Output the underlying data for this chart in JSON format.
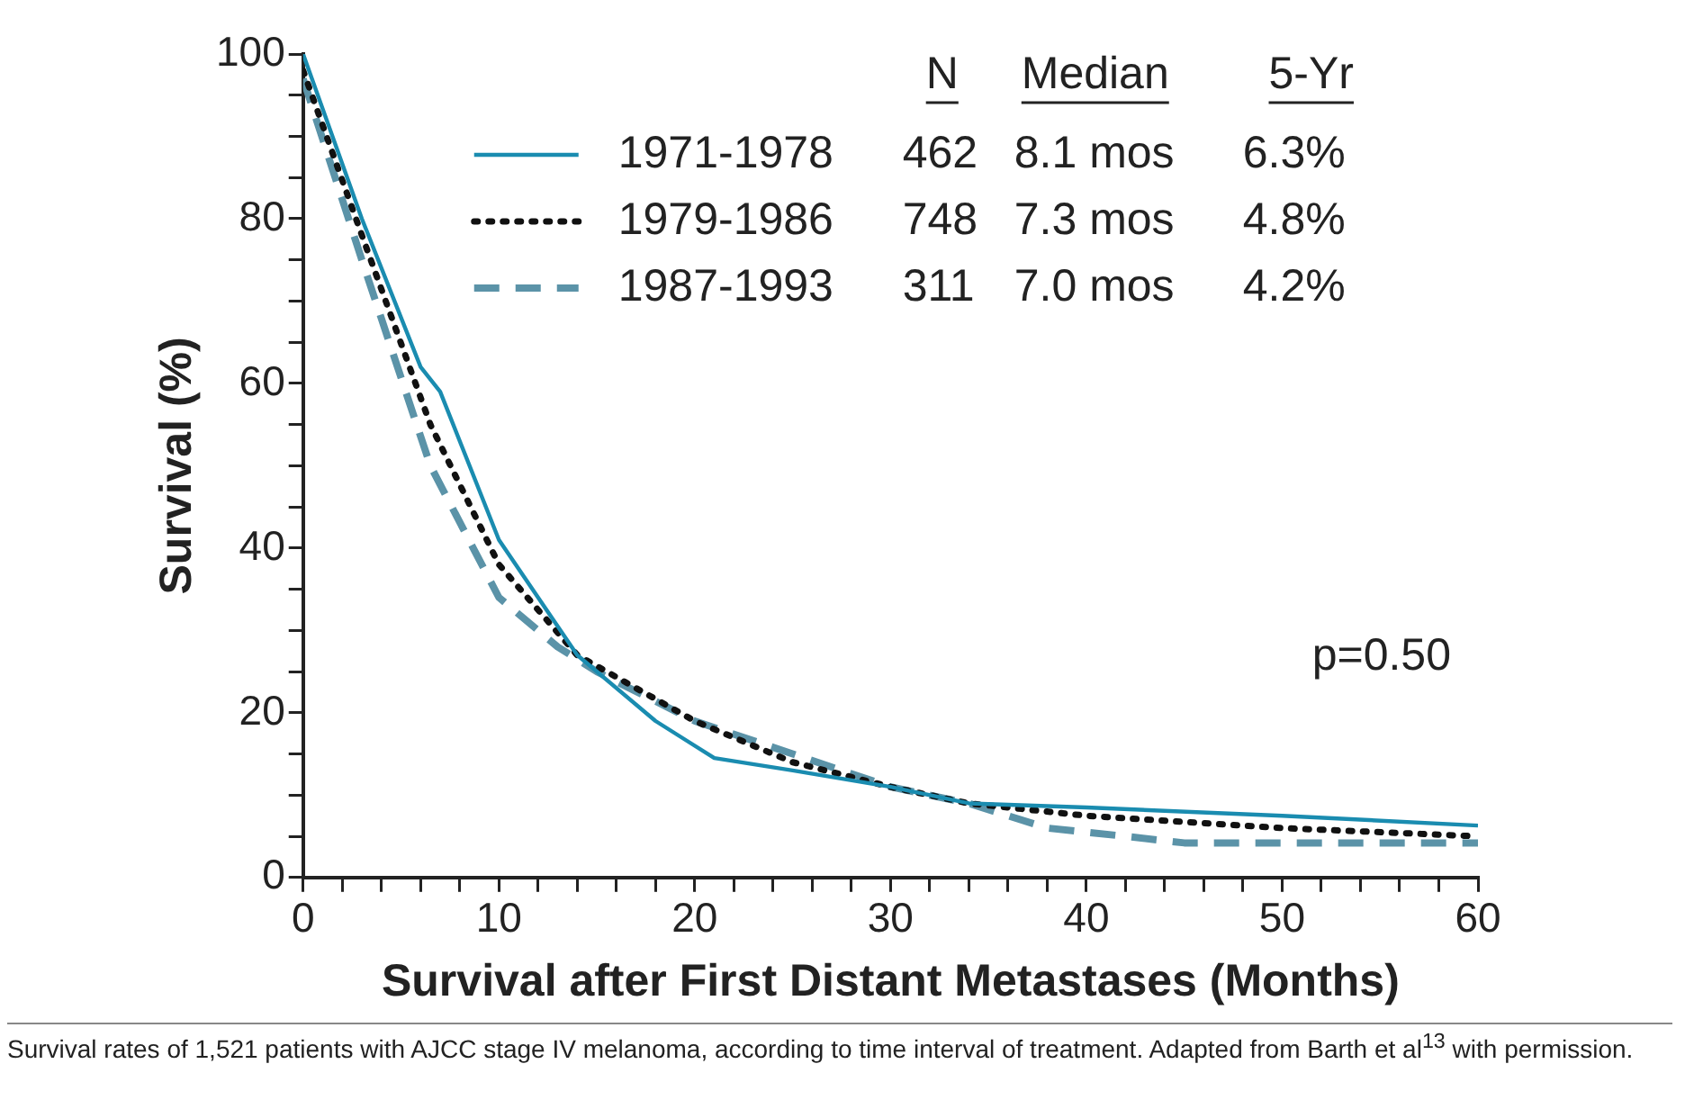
{
  "chart_data": {
    "type": "line",
    "xlabel": "Survival after First Distant Metastases (Months)",
    "ylabel": "Survival (%)",
    "xlim": [
      0,
      60
    ],
    "ylim": [
      0,
      100
    ],
    "xticks": [
      0,
      {
        "value": 2,
        "label": null
      },
      {
        "value": 4,
        "label": null
      },
      {
        "value": 6,
        "label": null
      },
      {
        "value": 8,
        "label": null
      },
      10,
      {
        "value": 12,
        "label": null
      },
      {
        "value": 14,
        "label": null
      },
      {
        "value": 16,
        "label": null
      },
      {
        "value": 18,
        "label": null
      },
      20,
      {
        "value": 22,
        "label": null
      },
      {
        "value": 24,
        "label": null
      },
      {
        "value": 26,
        "label": null
      },
      {
        "value": 28,
        "label": null
      },
      30,
      {
        "value": 32,
        "label": null
      },
      {
        "value": 34,
        "label": null
      },
      {
        "value": 36,
        "label": null
      },
      {
        "value": 38,
        "label": null
      },
      40,
      {
        "value": 42,
        "label": null
      },
      {
        "value": 44,
        "label": null
      },
      {
        "value": 46,
        "label": null
      },
      {
        "value": 48,
        "label": null
      },
      50,
      {
        "value": 52,
        "label": null
      },
      {
        "value": 54,
        "label": null
      },
      {
        "value": 56,
        "label": null
      },
      {
        "value": 58,
        "label": null
      },
      60
    ],
    "yticks": [
      0,
      {
        "value": 5,
        "label": null
      },
      {
        "value": 10,
        "label": null
      },
      {
        "value": 15,
        "label": null
      },
      20,
      {
        "value": 25,
        "label": null
      },
      {
        "value": 30,
        "label": null
      },
      {
        "value": 35,
        "label": null
      },
      40,
      {
        "value": 45,
        "label": null
      },
      {
        "value": 50,
        "label": null
      },
      {
        "value": 55,
        "label": null
      },
      60,
      {
        "value": 65,
        "label": null
      },
      {
        "value": 70,
        "label": null
      },
      {
        "value": 75,
        "label": null
      },
      80,
      {
        "value": 85,
        "label": null
      },
      {
        "value": 90,
        "label": null
      },
      {
        "value": 95,
        "label": null
      },
      100
    ],
    "grid": false,
    "legend": "top",
    "marker": "none",
    "series": [
      {
        "name": "1971-1978",
        "color": "#1a8cb0",
        "line_style": "solid",
        "x": [
          0,
          3,
          6,
          7,
          10,
          14,
          18,
          21,
          25,
          30,
          34,
          40,
          50,
          60
        ],
        "values": [
          100,
          80,
          62,
          59,
          41,
          27,
          19,
          14.5,
          13,
          11,
          9,
          8.5,
          7.5,
          6.3
        ]
      },
      {
        "name": "1979-1986",
        "color": "#111111",
        "line_style": "dotted",
        "x": [
          0,
          3,
          6.5,
          10,
          14,
          20,
          25,
          30,
          34,
          40,
          50,
          60
        ],
        "values": [
          98,
          78,
          55,
          38,
          27,
          19,
          14,
          11,
          9,
          7.5,
          6,
          5
        ]
      },
      {
        "name": "1987-1993",
        "color": "#5b93a8",
        "line_style": "dashed",
        "x": [
          0,
          3,
          6.5,
          10,
          13,
          15,
          20,
          25,
          30,
          34,
          38,
          42,
          45,
          60
        ],
        "values": [
          97,
          75,
          50,
          34,
          28,
          25,
          19,
          15,
          11,
          9,
          6,
          5,
          4.2,
          4.2
        ]
      }
    ],
    "annotations": [
      "N",
      "Median",
      "5-Yr",
      "462",
      "8.1 mos",
      "6.3%",
      "748",
      "7.3 mos",
      "4.8%",
      "311",
      "7.0 mos",
      "4.2%",
      "p=0.50",
      "Survival rates of 1,521 patients with AJCC stage IV melanoma, according to time interval of treatment.  Adapted from Barth et al$^{13}$ with permission."
    ]
  }
}
